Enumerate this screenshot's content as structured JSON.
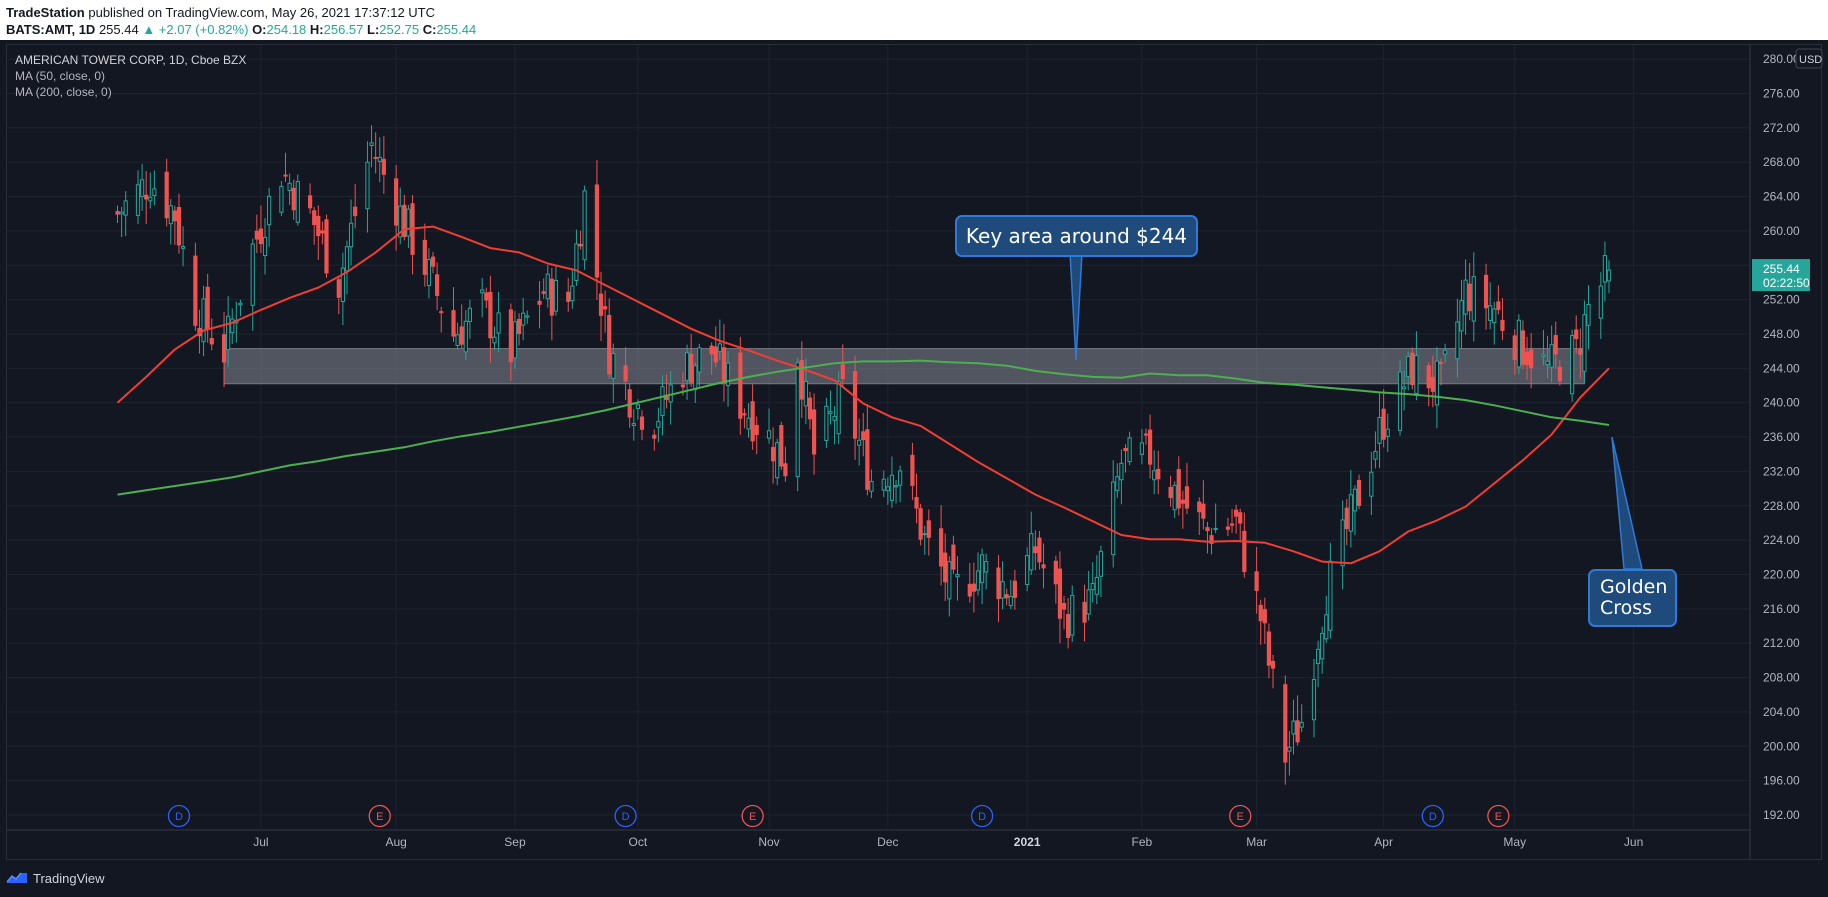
{
  "header": {
    "publisher": "TradeStation",
    "published_text": " published on TradingView.com, May 26, 2021 17:37:12 UTC",
    "symbol_line": "BATS:AMT, 1D",
    "last": "255.44",
    "change": "▲ +2.07 (+0.82%)",
    "o_label": "O:",
    "o_value": "254.18",
    "h_label": "H:",
    "h_value": "256.57",
    "l_label": "L:",
    "l_value": "252.75",
    "c_label": "C:",
    "c_value": "255.44"
  },
  "legend": {
    "title": "AMERICAN TOWER CORP, 1D, Cboe BZX",
    "ma50": "MA (50, close, 0)",
    "ma200": "MA (200, close, 0)"
  },
  "price_axis": {
    "currency": "USD",
    "last_price": "255.44",
    "countdown": "02:22:50"
  },
  "footer": {
    "brand": "TradingView"
  },
  "annotations": {
    "key_area": "Key area around $244",
    "golden_cross_line1": "Golden",
    "golden_cross_line2": "Cross"
  },
  "colors": {
    "background": "#131722",
    "up": "#26a69a",
    "down": "#ef5350",
    "ma50": "#f23e32",
    "ma200": "#4caf50",
    "callout": "#1e4a7c"
  },
  "chart_data": {
    "type": "candlestick",
    "title": "AMERICAN TOWER CORP, 1D, Cboe BZX",
    "y_ticks": [
      192,
      196,
      200,
      204,
      208,
      212,
      216,
      220,
      224,
      228,
      232,
      236,
      240,
      244,
      248,
      252,
      256,
      260,
      264,
      268,
      272,
      276,
      280
    ],
    "ylim": [
      190,
      281
    ],
    "x_ticks": [
      {
        "label": "Jul",
        "date": "2020-07-01"
      },
      {
        "label": "Aug",
        "date": "2020-08-03"
      },
      {
        "label": "Sep",
        "date": "2020-09-01"
      },
      {
        "label": "Oct",
        "date": "2020-10-01"
      },
      {
        "label": "Nov",
        "date": "2020-11-02"
      },
      {
        "label": "Dec",
        "date": "2020-12-01"
      },
      {
        "label": "2021",
        "date": "2021-01-04"
      },
      {
        "label": "Feb",
        "date": "2021-02-01"
      },
      {
        "label": "Mar",
        "date": "2021-03-01"
      },
      {
        "label": "Apr",
        "date": "2021-04-01"
      },
      {
        "label": "May",
        "date": "2021-05-03"
      },
      {
        "label": "Jun",
        "date": "2021-06-01"
      }
    ],
    "events": [
      {
        "type": "D",
        "date": "2020-06-11"
      },
      {
        "type": "E",
        "date": "2020-07-30"
      },
      {
        "type": "D",
        "date": "2020-09-28"
      },
      {
        "type": "E",
        "date": "2020-10-29"
      },
      {
        "type": "D",
        "date": "2020-12-24"
      },
      {
        "type": "E",
        "date": "2021-02-25"
      },
      {
        "type": "D",
        "date": "2021-04-13"
      },
      {
        "type": "E",
        "date": "2021-04-29"
      }
    ],
    "zone": {
      "date_start": "2020-06-22",
      "date_end": "2021-05-20",
      "low": 242.2,
      "high": 246.3
    },
    "close_path": [
      {
        "date": "2020-05-27",
        "close": 262
      },
      {
        "date": "2020-06-04",
        "close": 266
      },
      {
        "date": "2020-06-10",
        "close": 262
      },
      {
        "date": "2020-06-15",
        "close": 251
      },
      {
        "date": "2020-06-22",
        "close": 246
      },
      {
        "date": "2020-06-29",
        "close": 258
      },
      {
        "date": "2020-07-06",
        "close": 267
      },
      {
        "date": "2020-07-13",
        "close": 262
      },
      {
        "date": "2020-07-20",
        "close": 254
      },
      {
        "date": "2020-07-28",
        "close": 270
      },
      {
        "date": "2020-08-04",
        "close": 262
      },
      {
        "date": "2020-08-10",
        "close": 256
      },
      {
        "date": "2020-08-17",
        "close": 248
      },
      {
        "date": "2020-08-24",
        "close": 251
      },
      {
        "date": "2020-08-31",
        "close": 246
      },
      {
        "date": "2020-09-08",
        "close": 253
      },
      {
        "date": "2020-09-14",
        "close": 252
      },
      {
        "date": "2020-09-18",
        "close": 264
      },
      {
        "date": "2020-09-24",
        "close": 246
      },
      {
        "date": "2020-09-30",
        "close": 240
      },
      {
        "date": "2020-10-05",
        "close": 238
      },
      {
        "date": "2020-10-12",
        "close": 244
      },
      {
        "date": "2020-10-19",
        "close": 246
      },
      {
        "date": "2020-10-26",
        "close": 240
      },
      {
        "date": "2020-11-02",
        "close": 236
      },
      {
        "date": "2020-11-06",
        "close": 233
      },
      {
        "date": "2020-11-09",
        "close": 246
      },
      {
        "date": "2020-11-13",
        "close": 234
      },
      {
        "date": "2020-11-20",
        "close": 241
      },
      {
        "date": "2020-11-27",
        "close": 231
      },
      {
        "date": "2020-12-04",
        "close": 233
      },
      {
        "date": "2020-12-10",
        "close": 224
      },
      {
        "date": "2020-12-17",
        "close": 218
      },
      {
        "date": "2020-12-24",
        "close": 221
      },
      {
        "date": "2020-12-31",
        "close": 218
      },
      {
        "date": "2021-01-06",
        "close": 223
      },
      {
        "date": "2021-01-13",
        "close": 215
      },
      {
        "date": "2021-01-20",
        "close": 217
      },
      {
        "date": "2021-01-27",
        "close": 233
      },
      {
        "date": "2021-02-03",
        "close": 234
      },
      {
        "date": "2021-02-10",
        "close": 229
      },
      {
        "date": "2021-02-17",
        "close": 225
      },
      {
        "date": "2021-02-24",
        "close": 226
      },
      {
        "date": "2021-03-02",
        "close": 215
      },
      {
        "date": "2021-03-08",
        "close": 199
      },
      {
        "date": "2021-03-12",
        "close": 203
      },
      {
        "date": "2021-03-18",
        "close": 218
      },
      {
        "date": "2021-03-25",
        "close": 228
      },
      {
        "date": "2021-04-01",
        "close": 238
      },
      {
        "date": "2021-04-08",
        "close": 244
      },
      {
        "date": "2021-04-15",
        "close": 242
      },
      {
        "date": "2021-04-21",
        "close": 253
      },
      {
        "date": "2021-04-28",
        "close": 251
      },
      {
        "date": "2021-05-04",
        "close": 247
      },
      {
        "date": "2021-05-11",
        "close": 244
      },
      {
        "date": "2021-05-18",
        "close": 246
      },
      {
        "date": "2021-05-21",
        "close": 251
      },
      {
        "date": "2021-05-26",
        "close": 255.44
      }
    ],
    "series": [
      {
        "name": "MA (50, close, 0)",
        "points": [
          {
            "date": "2020-05-27",
            "value": 240
          },
          {
            "date": "2020-06-03",
            "value": 243
          },
          {
            "date": "2020-06-10",
            "value": 246.2
          },
          {
            "date": "2020-06-17",
            "value": 248.4
          },
          {
            "date": "2020-06-24",
            "value": 249.3
          },
          {
            "date": "2020-07-01",
            "value": 250.8
          },
          {
            "date": "2020-07-08",
            "value": 252.2
          },
          {
            "date": "2020-07-15",
            "value": 253.4
          },
          {
            "date": "2020-07-22",
            "value": 255.2
          },
          {
            "date": "2020-07-29",
            "value": 257.5
          },
          {
            "date": "2020-08-05",
            "value": 260.2
          },
          {
            "date": "2020-08-12",
            "value": 260.5
          },
          {
            "date": "2020-08-19",
            "value": 259.3
          },
          {
            "date": "2020-08-26",
            "value": 258
          },
          {
            "date": "2020-09-02",
            "value": 257.5
          },
          {
            "date": "2020-09-09",
            "value": 256.2
          },
          {
            "date": "2020-09-16",
            "value": 255.4
          },
          {
            "date": "2020-09-23",
            "value": 253.7
          },
          {
            "date": "2020-09-30",
            "value": 252
          },
          {
            "date": "2020-10-07",
            "value": 250.3
          },
          {
            "date": "2020-10-14",
            "value": 248.6
          },
          {
            "date": "2020-10-21",
            "value": 247.2
          },
          {
            "date": "2020-10-28",
            "value": 246.1
          },
          {
            "date": "2020-11-04",
            "value": 244.9
          },
          {
            "date": "2020-11-11",
            "value": 243.8
          },
          {
            "date": "2020-11-18",
            "value": 242.6
          },
          {
            "date": "2020-11-25",
            "value": 239.9
          },
          {
            "date": "2020-12-02",
            "value": 238.3
          },
          {
            "date": "2020-12-09",
            "value": 237.3
          },
          {
            "date": "2020-12-16",
            "value": 235.2
          },
          {
            "date": "2020-12-23",
            "value": 233.1
          },
          {
            "date": "2020-12-30",
            "value": 231.2
          },
          {
            "date": "2021-01-06",
            "value": 229.3
          },
          {
            "date": "2021-01-13",
            "value": 227.8
          },
          {
            "date": "2021-01-20",
            "value": 226.2
          },
          {
            "date": "2021-01-27",
            "value": 224.6
          },
          {
            "date": "2021-02-03",
            "value": 224.1
          },
          {
            "date": "2021-02-10",
            "value": 224.1
          },
          {
            "date": "2021-02-17",
            "value": 223.8
          },
          {
            "date": "2021-02-24",
            "value": 223.9
          },
          {
            "date": "2021-03-03",
            "value": 223.7
          },
          {
            "date": "2021-03-10",
            "value": 222.7
          },
          {
            "date": "2021-03-17",
            "value": 221.5
          },
          {
            "date": "2021-03-24",
            "value": 221.3
          },
          {
            "date": "2021-03-31",
            "value": 222.7
          },
          {
            "date": "2021-04-07",
            "value": 225
          },
          {
            "date": "2021-04-14",
            "value": 226.3
          },
          {
            "date": "2021-04-21",
            "value": 227.9
          },
          {
            "date": "2021-04-28",
            "value": 230.6
          },
          {
            "date": "2021-05-05",
            "value": 233.3
          },
          {
            "date": "2021-05-12",
            "value": 236.3
          },
          {
            "date": "2021-05-19",
            "value": 240.6
          },
          {
            "date": "2021-05-26",
            "value": 244
          }
        ]
      },
      {
        "name": "MA (200, close, 0)",
        "points": [
          {
            "date": "2020-05-27",
            "value": 229.3
          },
          {
            "date": "2020-06-03",
            "value": 229.8
          },
          {
            "date": "2020-06-10",
            "value": 230.3
          },
          {
            "date": "2020-06-17",
            "value": 230.8
          },
          {
            "date": "2020-06-24",
            "value": 231.3
          },
          {
            "date": "2020-07-01",
            "value": 232
          },
          {
            "date": "2020-07-08",
            "value": 232.7
          },
          {
            "date": "2020-07-15",
            "value": 233.2
          },
          {
            "date": "2020-07-22",
            "value": 233.8
          },
          {
            "date": "2020-07-29",
            "value": 234.3
          },
          {
            "date": "2020-08-05",
            "value": 234.8
          },
          {
            "date": "2020-08-12",
            "value": 235.5
          },
          {
            "date": "2020-08-19",
            "value": 236.1
          },
          {
            "date": "2020-08-26",
            "value": 236.6
          },
          {
            "date": "2020-09-02",
            "value": 237.2
          },
          {
            "date": "2020-09-09",
            "value": 237.8
          },
          {
            "date": "2020-09-16",
            "value": 238.4
          },
          {
            "date": "2020-09-23",
            "value": 239.1
          },
          {
            "date": "2020-09-30",
            "value": 239.9
          },
          {
            "date": "2020-10-07",
            "value": 240.7
          },
          {
            "date": "2020-10-14",
            "value": 241.5
          },
          {
            "date": "2020-10-21",
            "value": 242.3
          },
          {
            "date": "2020-10-28",
            "value": 243
          },
          {
            "date": "2020-11-04",
            "value": 243.6
          },
          {
            "date": "2020-11-11",
            "value": 244.1
          },
          {
            "date": "2020-11-18",
            "value": 244.6
          },
          {
            "date": "2020-11-25",
            "value": 244.8
          },
          {
            "date": "2020-12-02",
            "value": 244.8
          },
          {
            "date": "2020-12-09",
            "value": 244.9
          },
          {
            "date": "2020-12-16",
            "value": 244.7
          },
          {
            "date": "2020-12-23",
            "value": 244.6
          },
          {
            "date": "2020-12-30",
            "value": 244.3
          },
          {
            "date": "2021-01-06",
            "value": 243.7
          },
          {
            "date": "2021-01-13",
            "value": 243.3
          },
          {
            "date": "2021-01-20",
            "value": 243
          },
          {
            "date": "2021-01-27",
            "value": 242.9
          },
          {
            "date": "2021-02-03",
            "value": 243.4
          },
          {
            "date": "2021-02-10",
            "value": 243.2
          },
          {
            "date": "2021-02-17",
            "value": 243.2
          },
          {
            "date": "2021-02-24",
            "value": 242.8
          },
          {
            "date": "2021-03-03",
            "value": 242.3
          },
          {
            "date": "2021-03-10",
            "value": 242.1
          },
          {
            "date": "2021-03-17",
            "value": 241.8
          },
          {
            "date": "2021-03-24",
            "value": 241.5
          },
          {
            "date": "2021-03-31",
            "value": 241.2
          },
          {
            "date": "2021-04-07",
            "value": 241
          },
          {
            "date": "2021-04-14",
            "value": 240.7
          },
          {
            "date": "2021-04-21",
            "value": 240.3
          },
          {
            "date": "2021-04-28",
            "value": 239.7
          },
          {
            "date": "2021-05-05",
            "value": 239
          },
          {
            "date": "2021-05-12",
            "value": 238.3
          },
          {
            "date": "2021-05-19",
            "value": 237.9
          },
          {
            "date": "2021-05-26",
            "value": 237.4
          }
        ]
      }
    ]
  }
}
